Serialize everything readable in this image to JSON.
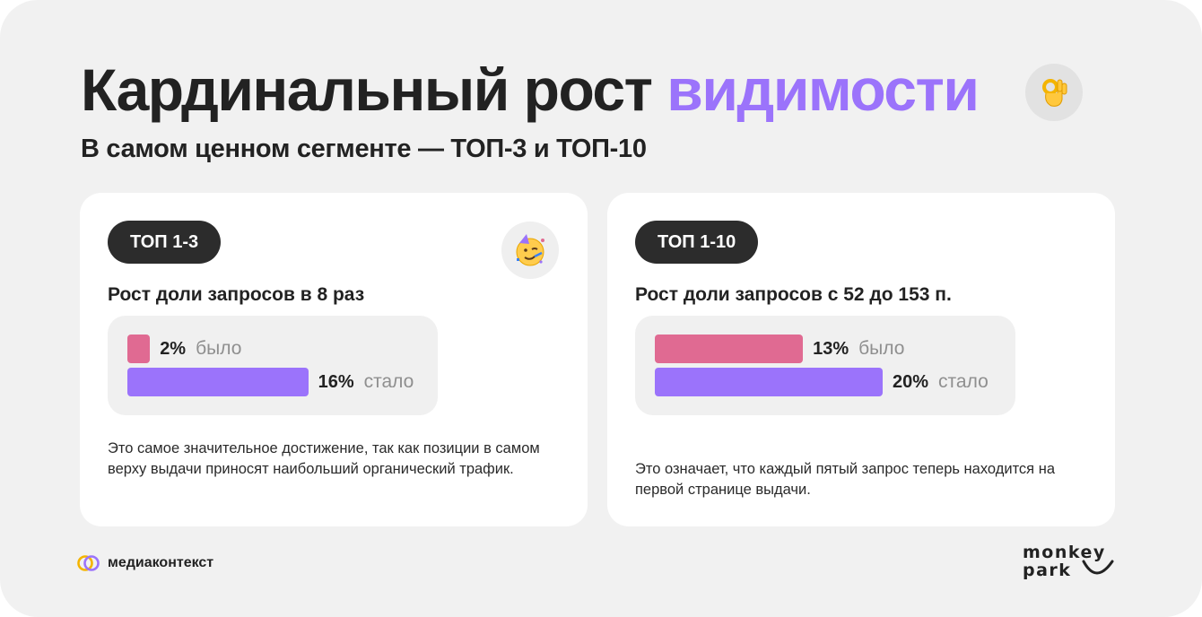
{
  "header": {
    "title_main": "Кардинальный рост",
    "title_accent": "видимости",
    "title_emoji": "👌",
    "subtitle": "В самом ценном сегменте — ТОП-3 и ТОП-10"
  },
  "colors": {
    "accent": "#9b73fb",
    "before_bar": "#e06a92",
    "after_bar": "#9b73fb",
    "dark": "#222222"
  },
  "cards": [
    {
      "pill": "ТОП 1-3",
      "emoji": "🥳",
      "heading": "Рост доли запросов в 8 раз",
      "before": {
        "percent": 2,
        "label": "2%",
        "tag": "было"
      },
      "after": {
        "percent": 16,
        "label": "16%",
        "tag": "стало"
      },
      "description": "Это самое значительное достижение, так как позиции в самом верху выдачи приносят наибольший органический трафик."
    },
    {
      "pill": "ТОП 1-10",
      "heading": "Рост доли запросов с 52 до 153 п.",
      "before": {
        "percent": 13,
        "label": "13%",
        "tag": "было"
      },
      "after": {
        "percent": 20,
        "label": "20%",
        "tag": "стало"
      },
      "description": "Это означает, что каждый пятый запрос теперь находится на первой странице выдачи."
    }
  ],
  "footer": {
    "left_brand": "медиаконтекст",
    "left_logo_icon": "interlocked-rings-icon",
    "right_brand_line1": "monkey",
    "right_brand_line2": "park"
  }
}
